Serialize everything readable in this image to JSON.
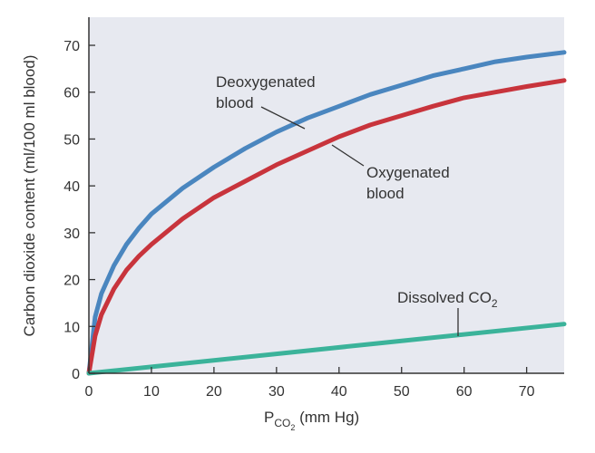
{
  "chart_data": {
    "type": "line",
    "title": "",
    "xlabel": "P",
    "xlabel_sub": "CO",
    "xlabel_subsub": "2",
    "xlabel_tail": " (mm Hg)",
    "ylabel": "Carbon dioxide content (ml/100 ml blood)",
    "xlim": [
      0,
      76
    ],
    "ylim": [
      0,
      76
    ],
    "x_ticks": [
      0,
      10,
      20,
      30,
      40,
      50,
      60,
      70
    ],
    "y_ticks": [
      0,
      10,
      20,
      30,
      40,
      50,
      60,
      70
    ],
    "grid": false,
    "series": [
      {
        "name": "Deoxygenated blood",
        "color": "#4a86bf",
        "x": [
          0,
          1,
          2,
          4,
          6,
          8,
          10,
          15,
          20,
          25,
          30,
          35,
          40,
          45,
          50,
          55,
          60,
          65,
          70,
          76
        ],
        "y": [
          0,
          12,
          17,
          23,
          27.5,
          31,
          34,
          39.5,
          44,
          48,
          51.5,
          54.5,
          57,
          59.5,
          61.5,
          63.5,
          65,
          66.5,
          67.5,
          68.5
        ]
      },
      {
        "name": "Oxygenated blood",
        "color": "#c8343c",
        "x": [
          0,
          1,
          2,
          4,
          6,
          8,
          10,
          15,
          20,
          25,
          30,
          35,
          40,
          45,
          50,
          55,
          60,
          65,
          70,
          76
        ],
        "y": [
          0,
          8,
          12.5,
          18,
          22,
          25,
          27.5,
          33,
          37.5,
          41,
          44.5,
          47.5,
          50.5,
          53,
          55,
          57,
          58.8,
          60,
          61.2,
          62.5
        ]
      },
      {
        "name": "Dissolved CO2",
        "color": "#3bb39a",
        "x": [
          0,
          76
        ],
        "y": [
          0,
          10.5
        ]
      }
    ],
    "annotations": [
      {
        "line1": "Deoxygenated",
        "line2": "blood"
      },
      {
        "line1": "Oxygenated",
        "line2": "blood"
      },
      {
        "text": "Dissolved CO",
        "sub": "2"
      }
    ]
  }
}
